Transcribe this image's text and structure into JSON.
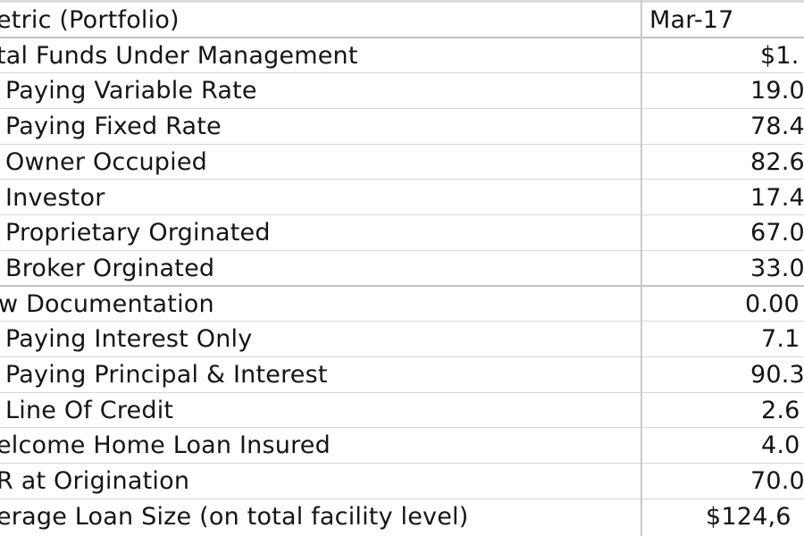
{
  "table": {
    "header": {
      "metric": "etric (Portfolio)",
      "column": "Mar-17"
    },
    "rows": [
      {
        "metric": "tal Funds Under Management",
        "value": "$1."
      },
      {
        "metric": "Paying Variable Rate",
        "value": "19.0"
      },
      {
        "metric": "Paying Fixed Rate",
        "value": "78.4"
      },
      {
        "metric": "Owner Occupied",
        "value": "82.6"
      },
      {
        "metric": "Investor",
        "value": "17.4"
      },
      {
        "metric": "Proprietary Orginated",
        "value": "67.0"
      },
      {
        "metric": "Broker Orginated",
        "value": "33.0"
      },
      {
        "metric": "w Documentation",
        "value": "0.00"
      },
      {
        "metric": "Paying Interest Only",
        "value": "7.1"
      },
      {
        "metric": "Paying Principal & Interest",
        "value": "90.3"
      },
      {
        "metric": "Line Of Credit",
        "value": "2.6"
      },
      {
        "metric": "elcome Home Loan Insured",
        "value": "4.0"
      },
      {
        "metric": "R at Origination",
        "value": "70.0"
      },
      {
        "metric": "erage Loan Size (on total facility level)",
        "value": "$124,6"
      }
    ]
  }
}
